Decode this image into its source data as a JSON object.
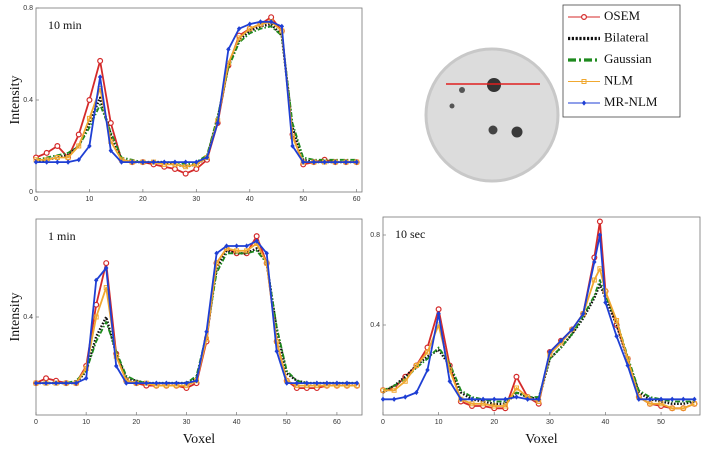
{
  "chart_data": [
    {
      "type": "line",
      "annotation": "10 min",
      "ylabel": "Intensity",
      "legend": true,
      "x": [
        0,
        2,
        4,
        6,
        8,
        10,
        12,
        14,
        16,
        18,
        20,
        22,
        24,
        26,
        28,
        30,
        32,
        34,
        36,
        38,
        40,
        42,
        44,
        46,
        48,
        50,
        52,
        54,
        56,
        58,
        60
      ],
      "xlim": [
        0,
        61
      ],
      "xticks": [
        0,
        10,
        20,
        30,
        40,
        50,
        60
      ],
      "ylim": [
        0,
        0.8
      ],
      "yticks": [
        0,
        0.4,
        0.8
      ],
      "series": [
        {
          "name": "OSEM",
          "color": "#d42a2a",
          "style": "solid",
          "marker": "circle",
          "values": [
            0.15,
            0.17,
            0.2,
            0.15,
            0.25,
            0.4,
            0.57,
            0.3,
            0.14,
            0.13,
            0.13,
            0.12,
            0.11,
            0.1,
            0.08,
            0.1,
            0.14,
            0.3,
            0.55,
            0.68,
            0.71,
            0.73,
            0.76,
            0.7,
            0.25,
            0.12,
            0.13,
            0.14,
            0.13,
            0.13,
            0.13
          ]
        },
        {
          "name": "Bilateral",
          "color": "#111111",
          "style": "dotted",
          "marker": "none",
          "values": [
            0.13,
            0.14,
            0.15,
            0.16,
            0.2,
            0.3,
            0.41,
            0.25,
            0.14,
            0.13,
            0.13,
            0.13,
            0.13,
            0.12,
            0.11,
            0.12,
            0.15,
            0.32,
            0.55,
            0.66,
            0.7,
            0.72,
            0.73,
            0.68,
            0.28,
            0.14,
            0.13,
            0.13,
            0.13,
            0.13,
            0.13
          ]
        },
        {
          "name": "Gaussian",
          "color": "#1e8a1e",
          "style": "dashdot",
          "marker": "none",
          "values": [
            0.14,
            0.15,
            0.16,
            0.17,
            0.2,
            0.28,
            0.38,
            0.26,
            0.15,
            0.14,
            0.13,
            0.13,
            0.13,
            0.13,
            0.12,
            0.13,
            0.16,
            0.33,
            0.54,
            0.65,
            0.69,
            0.71,
            0.72,
            0.68,
            0.3,
            0.15,
            0.14,
            0.14,
            0.14,
            0.14,
            0.14
          ]
        },
        {
          "name": "NLM",
          "color": "#f0a830",
          "style": "solid",
          "marker": "square",
          "values": [
            0.14,
            0.14,
            0.15,
            0.15,
            0.2,
            0.32,
            0.45,
            0.22,
            0.14,
            0.13,
            0.13,
            0.13,
            0.12,
            0.12,
            0.11,
            0.12,
            0.15,
            0.31,
            0.56,
            0.67,
            0.71,
            0.73,
            0.74,
            0.7,
            0.24,
            0.13,
            0.13,
            0.13,
            0.13,
            0.13,
            0.13
          ]
        },
        {
          "name": "MR-NLM",
          "color": "#1f3fd4",
          "style": "solid",
          "marker": "diamond",
          "values": [
            0.13,
            0.13,
            0.13,
            0.13,
            0.14,
            0.2,
            0.5,
            0.18,
            0.13,
            0.13,
            0.13,
            0.13,
            0.13,
            0.13,
            0.13,
            0.13,
            0.15,
            0.3,
            0.62,
            0.71,
            0.73,
            0.74,
            0.74,
            0.72,
            0.2,
            0.13,
            0.13,
            0.13,
            0.13,
            0.13,
            0.13
          ]
        }
      ]
    },
    {
      "type": "line",
      "annotation": "1 min",
      "ylabel": "Intensity",
      "xlabel": "Voxel",
      "x": [
        0,
        2,
        4,
        6,
        8,
        10,
        12,
        14,
        16,
        18,
        20,
        22,
        24,
        26,
        28,
        30,
        32,
        34,
        36,
        38,
        40,
        42,
        44,
        46,
        48,
        50,
        52,
        54,
        56,
        58,
        60,
        62,
        64
      ],
      "xlim": [
        0,
        65
      ],
      "xticks": [
        0,
        10,
        20,
        30,
        40,
        50,
        60
      ],
      "ylim": [
        0,
        0.8
      ],
      "yticks": [
        0.4
      ],
      "series": [
        {
          "name": "OSEM",
          "color": "#d42a2a",
          "style": "solid",
          "marker": "circle",
          "values": [
            0.13,
            0.15,
            0.14,
            0.13,
            0.13,
            0.2,
            0.45,
            0.62,
            0.25,
            0.14,
            0.13,
            0.12,
            0.12,
            0.12,
            0.12,
            0.11,
            0.13,
            0.3,
            0.62,
            0.68,
            0.66,
            0.66,
            0.73,
            0.62,
            0.3,
            0.14,
            0.11,
            0.11,
            0.11,
            0.12,
            0.12,
            0.12,
            0.12
          ]
        },
        {
          "name": "Bilateral",
          "color": "#111111",
          "style": "dotted",
          "marker": "none",
          "values": [
            0.13,
            0.13,
            0.13,
            0.13,
            0.13,
            0.18,
            0.32,
            0.4,
            0.25,
            0.15,
            0.14,
            0.13,
            0.13,
            0.13,
            0.13,
            0.13,
            0.15,
            0.32,
            0.6,
            0.67,
            0.66,
            0.66,
            0.68,
            0.62,
            0.35,
            0.17,
            0.14,
            0.13,
            0.13,
            0.13,
            0.13,
            0.13,
            0.13
          ]
        },
        {
          "name": "Gaussian",
          "color": "#1e8a1e",
          "style": "dashdot",
          "marker": "none",
          "values": [
            0.13,
            0.13,
            0.13,
            0.13,
            0.14,
            0.18,
            0.3,
            0.38,
            0.26,
            0.16,
            0.14,
            0.13,
            0.13,
            0.13,
            0.13,
            0.13,
            0.16,
            0.33,
            0.58,
            0.66,
            0.66,
            0.66,
            0.67,
            0.62,
            0.36,
            0.18,
            0.14,
            0.13,
            0.13,
            0.13,
            0.13,
            0.13,
            0.13
          ]
        },
        {
          "name": "NLM",
          "color": "#f0a830",
          "style": "solid",
          "marker": "square",
          "values": [
            0.13,
            0.13,
            0.13,
            0.13,
            0.13,
            0.19,
            0.4,
            0.52,
            0.24,
            0.14,
            0.13,
            0.13,
            0.12,
            0.12,
            0.12,
            0.12,
            0.14,
            0.31,
            0.62,
            0.68,
            0.67,
            0.67,
            0.7,
            0.62,
            0.3,
            0.14,
            0.12,
            0.12,
            0.12,
            0.12,
            0.12,
            0.12,
            0.12
          ]
        },
        {
          "name": "MR-NLM",
          "color": "#1f3fd4",
          "style": "solid",
          "marker": "diamond",
          "values": [
            0.13,
            0.13,
            0.13,
            0.13,
            0.13,
            0.15,
            0.55,
            0.6,
            0.2,
            0.13,
            0.13,
            0.13,
            0.13,
            0.13,
            0.13,
            0.13,
            0.14,
            0.34,
            0.66,
            0.69,
            0.69,
            0.69,
            0.71,
            0.66,
            0.26,
            0.13,
            0.13,
            0.13,
            0.13,
            0.13,
            0.13,
            0.13,
            0.13
          ]
        }
      ]
    },
    {
      "type": "line",
      "annotation": "10 sec",
      "xlabel": "Voxel",
      "x": [
        0,
        2,
        4,
        6,
        8,
        10,
        12,
        14,
        16,
        18,
        20,
        22,
        24,
        26,
        28,
        30,
        32,
        34,
        36,
        38,
        39,
        40,
        42,
        44,
        46,
        48,
        50,
        52,
        54,
        56
      ],
      "xlim": [
        0,
        57
      ],
      "xticks": [
        0,
        10,
        20,
        30,
        40,
        50
      ],
      "ylim": [
        0,
        0.88
      ],
      "yticks": [
        0.4,
        0.8
      ],
      "series": [
        {
          "name": "OSEM",
          "color": "#d42a2a",
          "style": "solid",
          "marker": "circle",
          "values": [
            0.11,
            0.12,
            0.17,
            0.22,
            0.3,
            0.47,
            0.22,
            0.06,
            0.04,
            0.04,
            0.03,
            0.03,
            0.17,
            0.08,
            0.05,
            0.28,
            0.33,
            0.38,
            0.45,
            0.7,
            0.86,
            0.55,
            0.4,
            0.25,
            0.08,
            0.05,
            0.04,
            0.03,
            0.03,
            0.05
          ]
        },
        {
          "name": "Bilateral",
          "color": "#111111",
          "style": "dotted",
          "marker": "none",
          "values": [
            0.1,
            0.13,
            0.17,
            0.22,
            0.26,
            0.29,
            0.22,
            0.1,
            0.07,
            0.06,
            0.05,
            0.05,
            0.1,
            0.08,
            0.07,
            0.25,
            0.3,
            0.36,
            0.43,
            0.52,
            0.58,
            0.52,
            0.4,
            0.25,
            0.1,
            0.07,
            0.06,
            0.05,
            0.05,
            0.06
          ]
        },
        {
          "name": "Gaussian",
          "color": "#1e8a1e",
          "style": "dashdot",
          "marker": "none",
          "values": [
            0.11,
            0.13,
            0.16,
            0.21,
            0.25,
            0.3,
            0.23,
            0.11,
            0.08,
            0.07,
            0.06,
            0.06,
            0.1,
            0.08,
            0.08,
            0.25,
            0.3,
            0.36,
            0.44,
            0.53,
            0.6,
            0.53,
            0.42,
            0.26,
            0.11,
            0.08,
            0.07,
            0.06,
            0.06,
            0.06
          ]
        },
        {
          "name": "NLM",
          "color": "#f0a830",
          "style": "solid",
          "marker": "square",
          "values": [
            0.11,
            0.11,
            0.15,
            0.22,
            0.28,
            0.4,
            0.2,
            0.07,
            0.05,
            0.05,
            0.04,
            0.04,
            0.12,
            0.08,
            0.06,
            0.27,
            0.32,
            0.38,
            0.45,
            0.6,
            0.65,
            0.55,
            0.42,
            0.25,
            0.08,
            0.05,
            0.05,
            0.03,
            0.03,
            0.05
          ]
        },
        {
          "name": "MR-NLM",
          "color": "#1f3fd4",
          "style": "solid",
          "marker": "diamond",
          "values": [
            0.07,
            0.07,
            0.08,
            0.1,
            0.2,
            0.45,
            0.15,
            0.07,
            0.07,
            0.07,
            0.07,
            0.07,
            0.08,
            0.07,
            0.07,
            0.28,
            0.33,
            0.38,
            0.45,
            0.68,
            0.8,
            0.5,
            0.35,
            0.22,
            0.07,
            0.07,
            0.07,
            0.07,
            0.07,
            0.07
          ]
        }
      ]
    }
  ]
}
